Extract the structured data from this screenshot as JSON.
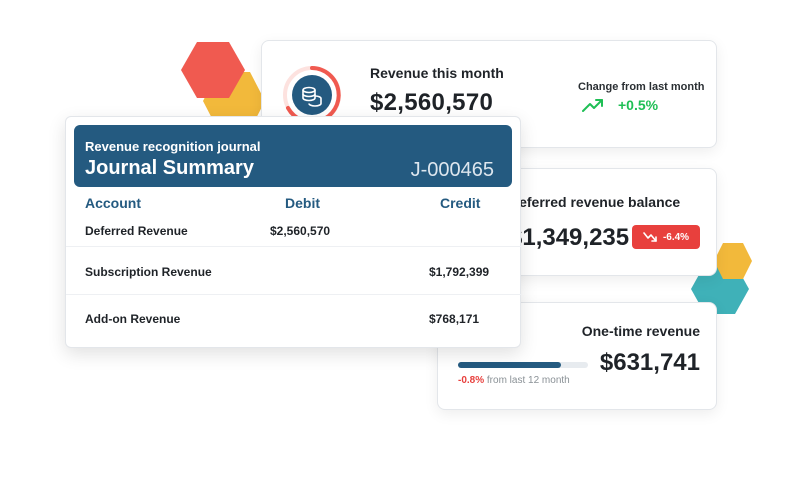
{
  "colors": {
    "navy": "#245a80",
    "accent_red": "#f05a50",
    "accent_yellow": "#f2b93b",
    "accent_teal": "#3fb1b8",
    "positive_green": "#1fbf55",
    "negative_red": "#e8403d"
  },
  "revenue_card": {
    "icon": "coins-icon",
    "title": "Revenue this month",
    "amount": "$2,560,570",
    "change_label": "Change from last month",
    "change_icon": "trend-up-icon",
    "change_value": "+0.5%"
  },
  "deferred_card": {
    "title": "Deferred revenue balance",
    "amount": "$1,349,235",
    "badge_icon": "trend-down-icon",
    "badge_value": "-6.4%"
  },
  "onetime_card": {
    "title": "One-time revenue",
    "amount": "$631,741",
    "progress": 0.79,
    "change_value": "-0.8%",
    "change_suffix": " from last 12 month"
  },
  "journal": {
    "subtitle": "Revenue recognition journal",
    "title": "Journal Summary",
    "id": "J-000465",
    "columns": {
      "account": "Account",
      "debit": "Debit",
      "credit": "Credit"
    },
    "rows": [
      {
        "account": "Deferred Revenue",
        "debit": "$2,560,570",
        "credit": ""
      },
      {
        "account": "Subscription Revenue",
        "debit": "",
        "credit": "$1,792,399"
      },
      {
        "account": "Add-on Revenue",
        "debit": "",
        "credit": "$768,171"
      }
    ]
  }
}
